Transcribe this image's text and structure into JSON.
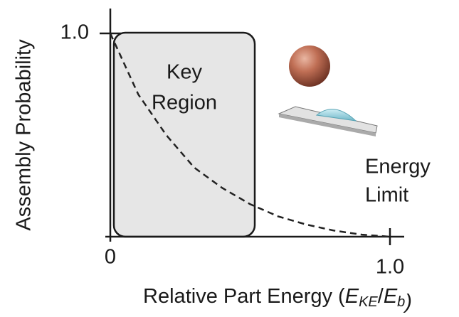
{
  "chart_data": {
    "type": "line",
    "ylabel": "Assembly Probability",
    "xlabel_parts": [
      "Relative Part Energy (",
      "E",
      "KE",
      "/",
      "E",
      "b",
      ")"
    ],
    "annotations": [
      [
        "Key",
        "Region"
      ],
      [
        "Energy",
        "Limit"
      ]
    ],
    "x": [
      0,
      0.1,
      0.2,
      0.3,
      0.4,
      0.5,
      0.6,
      0.7,
      0.8,
      0.9,
      1.0
    ],
    "series": [
      {
        "color": "#222222",
        "values": [
          1.0,
          0.7,
          0.5,
          0.34,
          0.24,
          0.16,
          0.1,
          0.06,
          0.03,
          0.01,
          0
        ]
      }
    ],
    "xlim": [
      0,
      1
    ],
    "ylim": [
      0,
      1
    ],
    "xticks": [
      0,
      {
        "value": 1,
        "label": "1.0"
      }
    ],
    "yticks": [
      {
        "value": 1,
        "label": "1.0"
      }
    ],
    "grid": false
  }
}
